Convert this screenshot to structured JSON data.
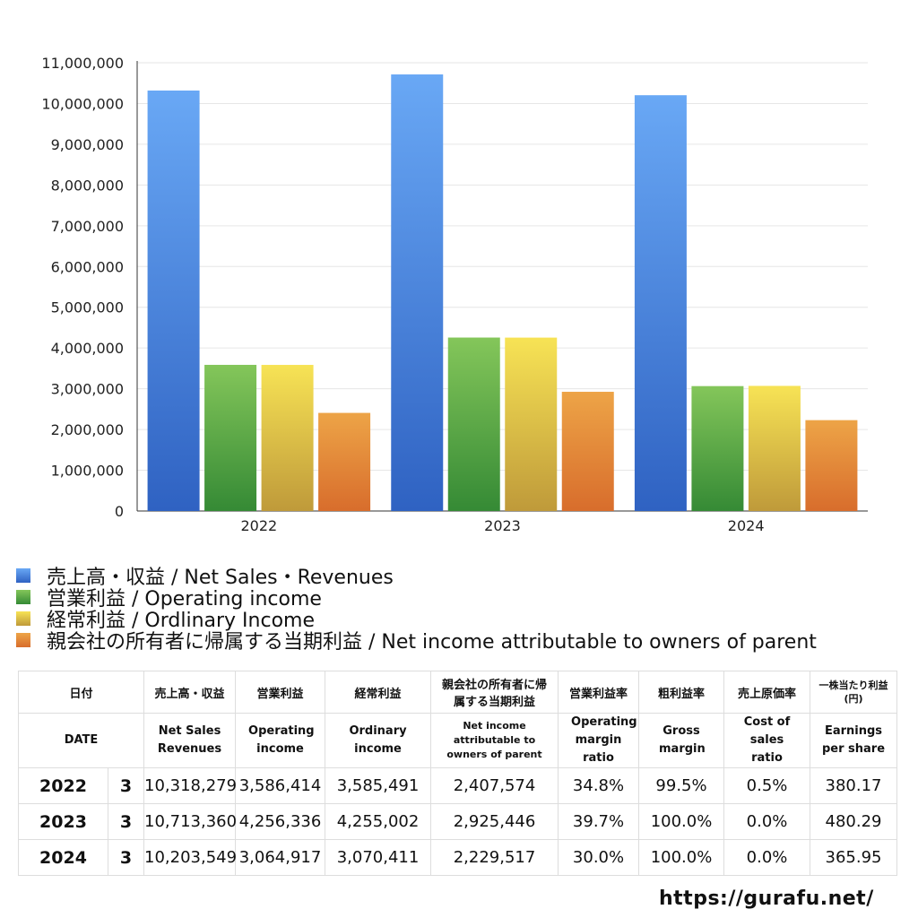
{
  "chart_data": {
    "type": "bar",
    "categories": [
      "2022",
      "2023",
      "2024"
    ],
    "series": [
      {
        "name": "売上高・収益 / Net Sales・Revenues",
        "values": [
          10318279,
          10713360,
          10203549
        ],
        "color": "#4a86e0"
      },
      {
        "name": "営業利益 / Operating income",
        "values": [
          3586414,
          4256336,
          3064917
        ],
        "color": "#5aaa45"
      },
      {
        "name": "経常利益 / Ordlinary Income",
        "values": [
          3585491,
          4255002,
          3070411
        ],
        "color": "#e6cc45"
      },
      {
        "name": "親会社の所有者に帰属する当期利益 / Net income attributable to owners of parent",
        "values": [
          2407574,
          2925446,
          2229517
        ],
        "color": "#e07f35"
      }
    ],
    "ylim": [
      0,
      11000000
    ],
    "yticks": [
      0,
      1000000,
      2000000,
      3000000,
      4000000,
      5000000,
      6000000,
      7000000,
      8000000,
      9000000,
      10000000,
      11000000
    ],
    "ytick_labels": [
      "0",
      "1,000,000",
      "2,000,000",
      "3,000,000",
      "4,000,000",
      "5,000,000",
      "6,000,000",
      "7,000,000",
      "8,000,000",
      "9,000,000",
      "10,000,000",
      "11,000,000"
    ],
    "grid": true,
    "legend": "bottom"
  },
  "table": {
    "header_ja": [
      "日付",
      "",
      "売上高・収益",
      "営業利益",
      "経常利益",
      "親会社の所有者に帰属する当期利益",
      "営業利益率",
      "粗利益率",
      "売上原価率",
      "一株当たり利益(円)"
    ],
    "header_en": [
      "DATE",
      "",
      "Net Sales Revenues",
      "Operating income",
      "Ordinary income",
      "Net income attributable to owners of parent",
      "Operating margin ratio",
      "Gross margin",
      "Cost of sales ratio",
      "Earnings per share"
    ],
    "rows": [
      [
        "2022",
        "3",
        "10,318,279",
        "3,586,414",
        "3,585,491",
        "2,407,574",
        "34.8%",
        "99.5%",
        "0.5%",
        "380.17"
      ],
      [
        "2023",
        "3",
        "10,713,360",
        "4,256,336",
        "4,255,002",
        "2,925,446",
        "39.7%",
        "100.0%",
        "0.0%",
        "480.29"
      ],
      [
        "2024",
        "3",
        "10,203,549",
        "3,064,917",
        "3,070,411",
        "2,229,517",
        "30.0%",
        "100.0%",
        "0.0%",
        "365.95"
      ]
    ]
  },
  "footer": {
    "url": "https://gurafu.net/"
  }
}
